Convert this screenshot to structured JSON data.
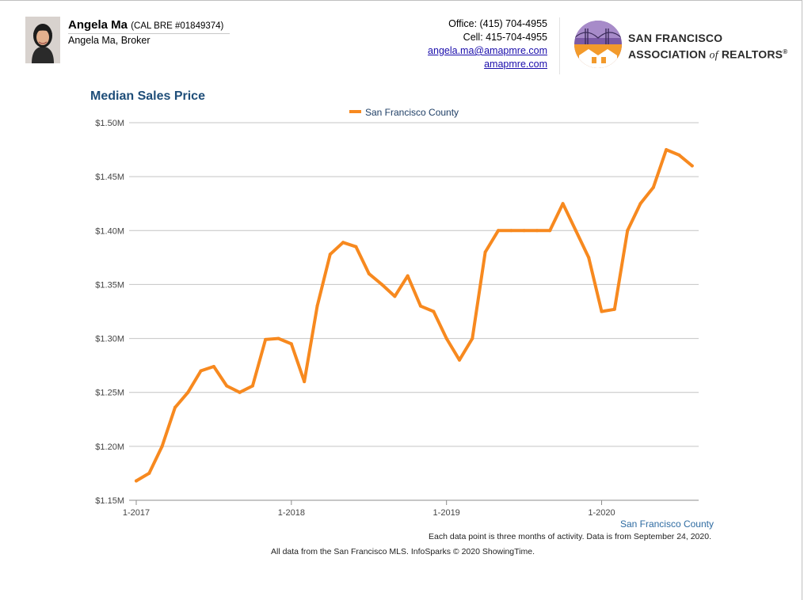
{
  "agent": {
    "name": "Angela Ma",
    "license": "(CAL BRE #01849374)",
    "title": "Angela Ma, Broker"
  },
  "contact": {
    "office": "Office: (415) 704-4955",
    "cell": "Cell: 415-704-4955",
    "email": "angela.ma@amapmre.com",
    "website": "amapmre.com"
  },
  "association": {
    "line1": "San Francisco",
    "line2_a": "Association",
    "line2_of": "of",
    "line2_b": "Realtors",
    "reg": "®"
  },
  "chart_data": {
    "type": "line",
    "title": "Median Sales Price",
    "legend_position": "top-center",
    "grid": true,
    "ylim": [
      1150000,
      1500000
    ],
    "y_ticks": [
      1150000,
      1200000,
      1250000,
      1300000,
      1350000,
      1400000,
      1450000,
      1500000
    ],
    "y_tick_labels": [
      "$1.15M",
      "$1.20M",
      "$1.25M",
      "$1.30M",
      "$1.35M",
      "$1.40M",
      "$1.45M",
      "$1.50M"
    ],
    "x_tick_labels": [
      "1-2017",
      "1-2018",
      "1-2019",
      "1-2020"
    ],
    "x_tick_index": [
      0,
      12,
      24,
      36
    ],
    "x": [
      "2017-01",
      "2017-02",
      "2017-03",
      "2017-04",
      "2017-05",
      "2017-06",
      "2017-07",
      "2017-08",
      "2017-09",
      "2017-10",
      "2017-11",
      "2017-12",
      "2018-01",
      "2018-02",
      "2018-03",
      "2018-04",
      "2018-05",
      "2018-06",
      "2018-07",
      "2018-08",
      "2018-09",
      "2018-10",
      "2018-11",
      "2018-12",
      "2019-01",
      "2019-02",
      "2019-03",
      "2019-04",
      "2019-05",
      "2019-06",
      "2019-07",
      "2019-08",
      "2019-09",
      "2019-10",
      "2019-11",
      "2019-12",
      "2020-01",
      "2020-02",
      "2020-03",
      "2020-04",
      "2020-05",
      "2020-06",
      "2020-07",
      "2020-08"
    ],
    "series": [
      {
        "name": "San Francisco County",
        "color": "#f7891f",
        "values": [
          1168000,
          1175000,
          1200000,
          1236000,
          1250000,
          1270000,
          1274000,
          1256000,
          1250000,
          1256000,
          1299000,
          1300000,
          1295000,
          1260000,
          1330000,
          1378000,
          1389000,
          1385000,
          1360000,
          1350000,
          1339000,
          1358000,
          1330000,
          1325000,
          1300000,
          1280000,
          1300000,
          1380000,
          1400000,
          1400000,
          1400000,
          1400000,
          1400000,
          1425000,
          1400000,
          1375000,
          1325000,
          1327000,
          1400000,
          1425000,
          1440000,
          1475000,
          1470000,
          1460000
        ]
      }
    ]
  },
  "footer": {
    "area": "San Francisco County",
    "note": "Each data point is three months of activity. Data is from September 24, 2020.",
    "credit": "All data from the San Francisco MLS. InfoSparks © 2020 ShowingTime."
  }
}
